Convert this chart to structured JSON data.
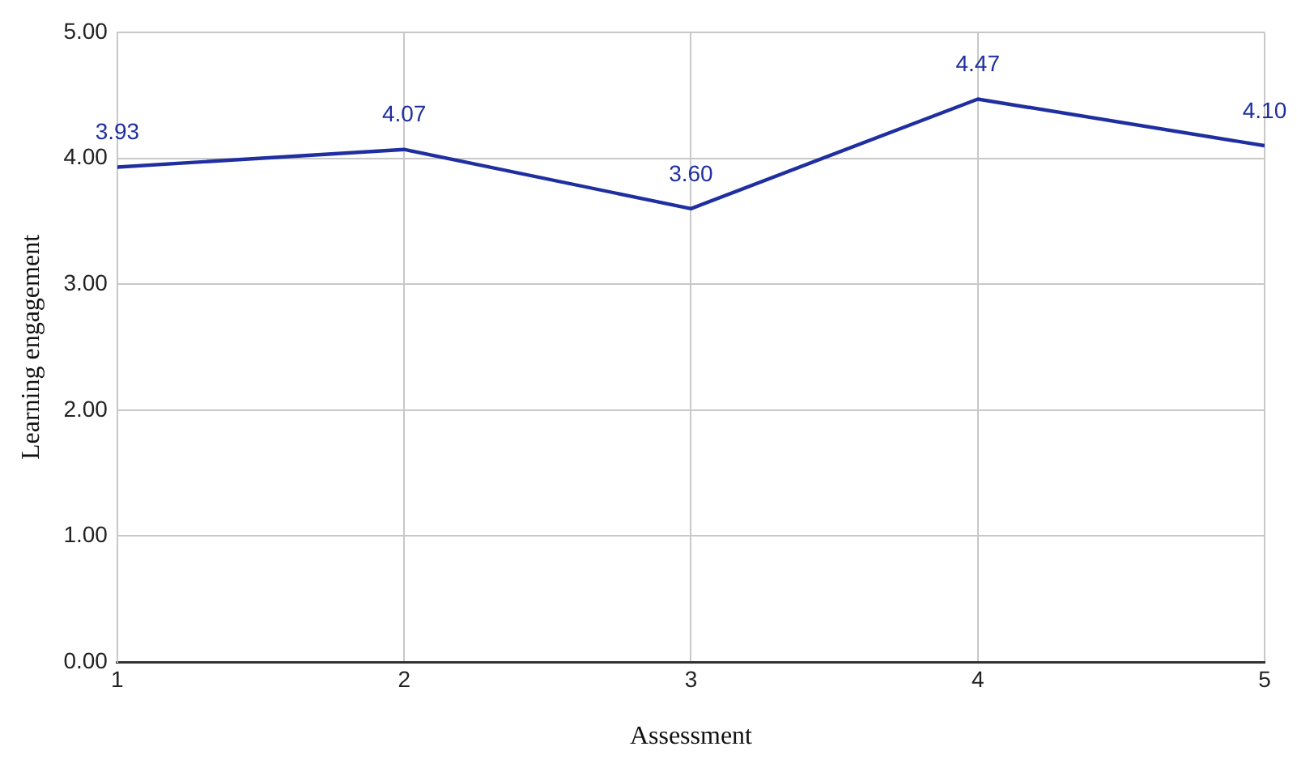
{
  "chart_data": {
    "type": "line",
    "xlabel": "Assessment",
    "ylabel": "Learning engagement",
    "x": [
      1,
      2,
      3,
      4,
      5
    ],
    "series": [
      {
        "color": "#1f2fa0",
        "values": [
          3.93,
          4.07,
          3.6,
          4.47,
          4.1
        ],
        "value_labels": [
          "3.93",
          "4.07",
          "3.60",
          "4.47",
          "4.10"
        ]
      }
    ],
    "xlim": [
      1,
      5
    ],
    "xticks": [
      1,
      2,
      3,
      4,
      5
    ],
    "ylim": [
      0,
      5
    ],
    "yticks": [
      {
        "value": 0,
        "label": "0.00"
      },
      {
        "value": 1,
        "label": "1.00"
      },
      {
        "value": 2,
        "label": "2.00"
      },
      {
        "value": 3,
        "label": "3.00"
      },
      {
        "value": 4,
        "label": "4.00"
      },
      {
        "value": 5,
        "label": "5.00"
      }
    ],
    "grid": true,
    "legend": false,
    "marker": "none",
    "line_style": "solid"
  }
}
